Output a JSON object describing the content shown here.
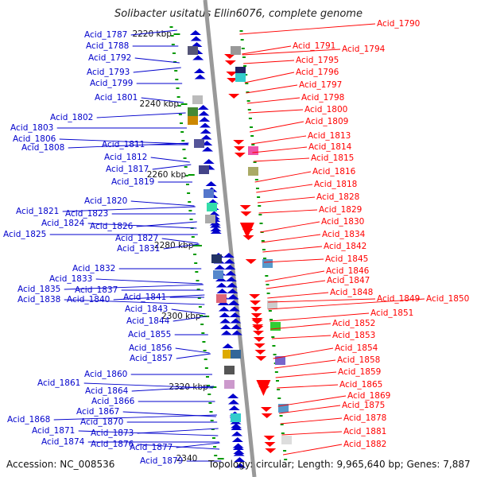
{
  "title": "Solibacter usitatus Ellin6076, complete genome",
  "footer": {
    "accession": "Accession: NC_008536",
    "topology": "Topology: circular; Length: 9,965,640 bp; Genes: 7,887"
  },
  "colors": {
    "left_strand": "#0000cc",
    "right_strand": "#ff0000",
    "axis": "#999999",
    "tick": "#009900"
  },
  "kbp_ticks": [
    "2220 kbp",
    "2240 kbp",
    "2260 kbp",
    "2280 kbp",
    "2300 kbp",
    "2320 kbp",
    "2340"
  ],
  "left_genes": [
    "Acid_1787",
    "Acid_1788",
    "Acid_1792",
    "Acid_1793",
    "Acid_1799",
    "Acid_1801",
    "Acid_1802",
    "Acid_1803",
    "Acid_1806",
    "Acid_1808",
    "Acid_1811",
    "Acid_1812",
    "Acid_1817",
    "Acid_1819",
    "Acid_1820",
    "Acid_1821",
    "Acid_1823",
    "Acid_1824",
    "Acid_1826",
    "Acid_1825",
    "Acid_1827",
    "Acid_1831",
    "Acid_1832",
    "Acid_1833",
    "Acid_1835",
    "Acid_1837",
    "Acid_1838",
    "Acid_1840",
    "Acid_1841",
    "Acid_1843",
    "Acid_1844",
    "Acid_1855",
    "Acid_1856",
    "Acid_1857",
    "Acid_1860",
    "Acid_1861",
    "Acid_1864",
    "Acid_1866",
    "Acid_1867",
    "Acid_1868",
    "Acid_1870",
    "Acid_1871",
    "Acid_1873",
    "Acid_1874",
    "Acid_1876",
    "Acid_1877",
    "Acid_1879"
  ],
  "right_genes": [
    "Acid_1790",
    "Acid_1791",
    "Acid_1794",
    "Acid_1795",
    "Acid_1796",
    "Acid_1797",
    "Acid_1798",
    "Acid_1800",
    "Acid_1809",
    "Acid_1813",
    "Acid_1814",
    "Acid_1815",
    "Acid_1816",
    "Acid_1818",
    "Acid_1828",
    "Acid_1829",
    "Acid_1830",
    "Acid_1834",
    "Acid_1842",
    "Acid_1845",
    "Acid_1846",
    "Acid_1847",
    "Acid_1848",
    "Acid_1849",
    "Acid_1850",
    "Acid_1851",
    "Acid_1852",
    "Acid_1853",
    "Acid_1854",
    "Acid_1858",
    "Acid_1859",
    "Acid_1865",
    "Acid_1869",
    "Acid_1875",
    "Acid_1878",
    "Acid_1881",
    "Acid_1882"
  ]
}
